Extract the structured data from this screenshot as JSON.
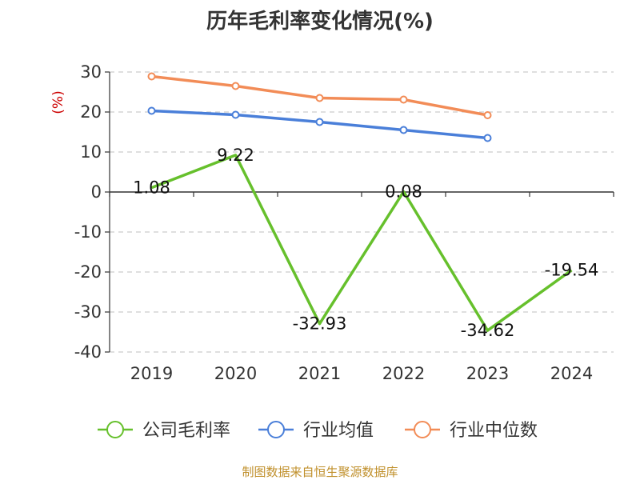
{
  "chart_data": {
    "type": "line",
    "title": "历年毛利率变化情况(%)",
    "ylabel": "(%)",
    "x": [
      "2019",
      "2020",
      "2021",
      "2022",
      "2023",
      "2024"
    ],
    "ylim": [
      -40,
      30
    ],
    "yticks": [
      30,
      20,
      10,
      0,
      -10,
      -20,
      -30,
      -40
    ],
    "grid": "horizontal-dashed",
    "legend_position": "bottom",
    "series": [
      {
        "name": "公司毛利率",
        "color": "#66c02c",
        "values": [
          1.08,
          9.22,
          -32.93,
          0.08,
          -34.62,
          -19.54
        ],
        "labels": [
          "1.08",
          "9.22",
          "-32.93",
          "0.08",
          "-34.62",
          "-19.54"
        ],
        "show_markers": false
      },
      {
        "name": "行业均值",
        "color": "#4a7fd9",
        "values": [
          20.3,
          19.3,
          17.5,
          15.5,
          13.5,
          null
        ],
        "show_markers": true
      },
      {
        "name": "行业中位数",
        "color": "#f28c57",
        "values": [
          28.9,
          26.5,
          23.5,
          23.1,
          19.2,
          null
        ],
        "show_markers": true
      }
    ]
  },
  "source": {
    "text": "制图数据来自恒生聚源数据库",
    "color": "#c0902c"
  }
}
